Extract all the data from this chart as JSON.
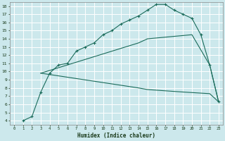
{
  "xlabel": "Humidex (Indice chaleur)",
  "bg_color": "#cce8ec",
  "grid_color": "#ffffff",
  "line_color": "#1a6b5a",
  "xlim": [
    -0.5,
    23.5
  ],
  "ylim": [
    3.5,
    18.5
  ],
  "xticks": [
    0,
    1,
    2,
    3,
    4,
    5,
    6,
    7,
    8,
    9,
    10,
    11,
    12,
    13,
    14,
    15,
    16,
    17,
    18,
    19,
    20,
    21,
    22,
    23
  ],
  "yticks": [
    4,
    5,
    6,
    7,
    8,
    9,
    10,
    11,
    12,
    13,
    14,
    15,
    16,
    17,
    18
  ],
  "curve1_x": [
    1,
    2,
    3,
    4,
    5,
    6,
    7,
    8,
    9,
    10,
    11,
    12,
    13,
    14,
    15,
    16,
    17,
    18,
    19,
    20,
    21,
    22,
    23
  ],
  "curve1_y": [
    4.0,
    4.5,
    7.5,
    9.8,
    10.8,
    11.0,
    12.5,
    13.0,
    13.5,
    14.5,
    15.0,
    15.8,
    16.3,
    16.8,
    17.5,
    18.2,
    18.2,
    17.5,
    17.0,
    16.5,
    14.5,
    10.8,
    6.3
  ],
  "curve2_x": [
    3,
    14,
    15,
    20,
    22,
    23
  ],
  "curve2_y": [
    9.8,
    13.5,
    14.0,
    14.5,
    10.8,
    6.3
  ],
  "curve3_x": [
    3,
    14,
    15,
    19,
    22,
    23
  ],
  "curve3_y": [
    9.8,
    8.0,
    7.8,
    7.5,
    7.3,
    6.3
  ]
}
